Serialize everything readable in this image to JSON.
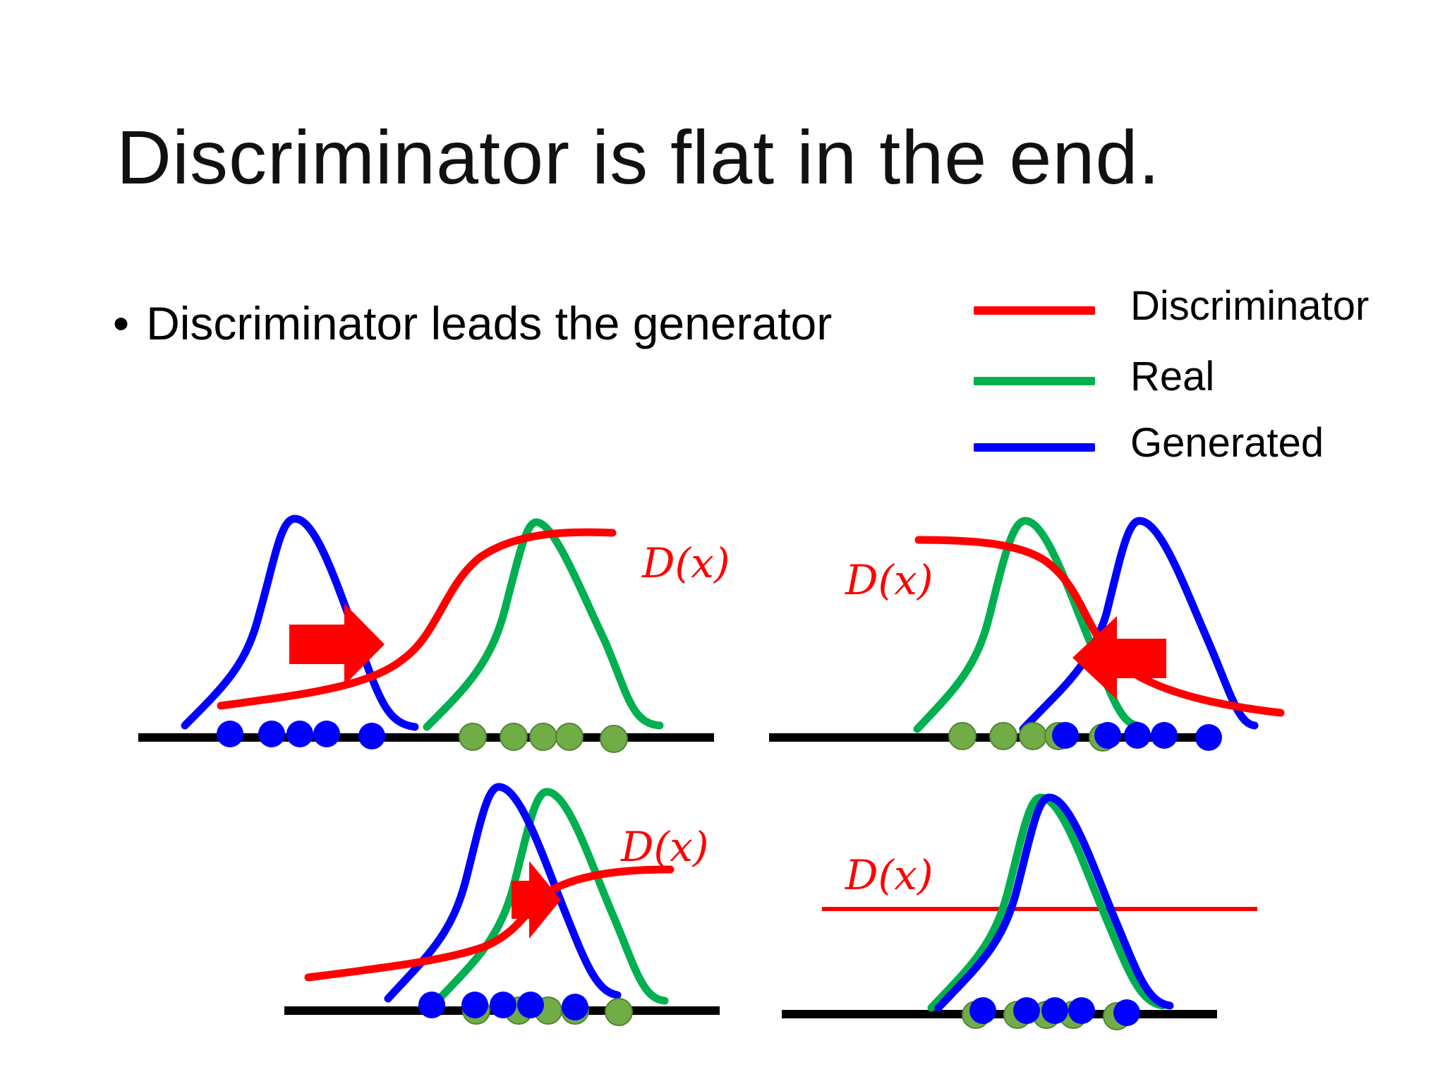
{
  "slide": {
    "title": "Discriminator is flat in the end.",
    "bullet_marker": "•",
    "bullet": "Discriminator leads the generator"
  },
  "legend": [
    {
      "label": "Discriminator",
      "color": "#ff0000"
    },
    {
      "label": "Real",
      "color": "#00b050"
    },
    {
      "label": "Generated",
      "color": "#0000ff"
    }
  ],
  "panels": [
    {
      "id": "top-left",
      "discriminator_label": "D(x)",
      "arrow_direction": "right"
    },
    {
      "id": "top-right",
      "discriminator_label": "D(x)",
      "arrow_direction": "left"
    },
    {
      "id": "bottom-left",
      "discriminator_label": "D(x)",
      "arrow_direction": "right"
    },
    {
      "id": "bottom-right",
      "discriminator_label": "D(x)",
      "arrow_direction": "none"
    }
  ],
  "colors": {
    "discriminator": "#ff0000",
    "real": "#00b050",
    "generated": "#0000ff",
    "real_sample": "#70ad47",
    "axis": "#000000"
  },
  "icons": {
    "bullet": "bullet-dot-icon",
    "arrow_right": "red-arrow-right-icon",
    "arrow_left": "red-arrow-left-icon"
  }
}
